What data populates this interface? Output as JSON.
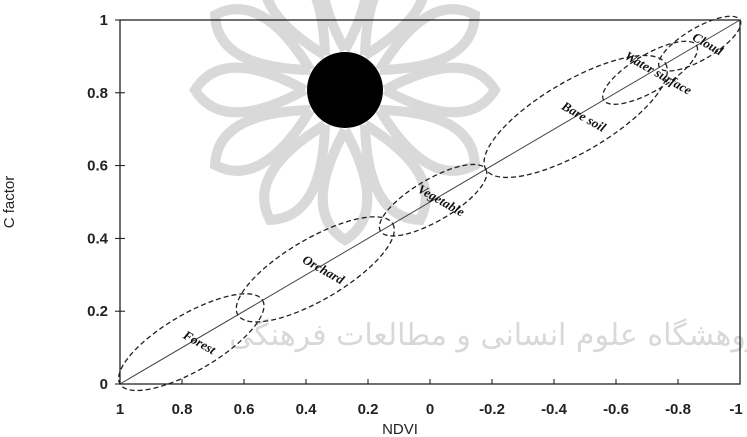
{
  "chart_data": {
    "type": "scatter",
    "title": "",
    "xlabel": "NDVI",
    "ylabel": "C factor",
    "xlim": [
      1,
      -1
    ],
    "ylim": [
      0,
      1
    ],
    "x_ticks": [
      {
        "value": 1,
        "label": "1"
      },
      {
        "value": 0.8,
        "label": "0.8"
      },
      {
        "value": 0.6,
        "label": "0.6"
      },
      {
        "value": 0.4,
        "label": "0.4"
      },
      {
        "value": 0.2,
        "label": "0.2"
      },
      {
        "value": 0,
        "label": "0"
      },
      {
        "value": -0.2,
        "label": "-0.2"
      },
      {
        "value": -0.4,
        "label": "-0.4"
      },
      {
        "value": -0.6,
        "label": "-0.6"
      },
      {
        "value": -0.8,
        "label": "-0.8"
      },
      {
        "value": -1,
        "label": "-1"
      }
    ],
    "y_ticks": [
      {
        "value": 0,
        "label": "0"
      },
      {
        "value": 0.2,
        "label": "0.2"
      },
      {
        "value": 0.4,
        "label": "0.4"
      },
      {
        "value": 0.6,
        "label": "0.6"
      },
      {
        "value": 0.8,
        "label": "0.8"
      },
      {
        "value": 1,
        "label": "1"
      }
    ],
    "fit_line": {
      "x": [
        1,
        -1
      ],
      "y": [
        0,
        1
      ]
    },
    "classes": [
      {
        "label": "Forest",
        "ndvi_range": [
          1.0,
          0.54
        ],
        "c_range": [
          0.0,
          0.23
        ]
      },
      {
        "label": "Orchard",
        "ndvi_range": [
          0.62,
          0.12
        ],
        "c_range": [
          0.19,
          0.44
        ]
      },
      {
        "label": "Vegetable",
        "ndvi_range": [
          0.16,
          -0.18
        ],
        "c_range": [
          0.42,
          0.59
        ]
      },
      {
        "label": "Bare soil",
        "ndvi_range": [
          -0.18,
          -0.76
        ],
        "c_range": [
          0.59,
          0.88
        ]
      },
      {
        "label": "Water surface",
        "ndvi_range": [
          -0.56,
          -0.86
        ],
        "c_range": [
          0.78,
          0.93
        ]
      },
      {
        "label": "Cloud",
        "ndvi_range": [
          -0.74,
          -1.0
        ],
        "c_range": [
          0.87,
          1.0
        ]
      }
    ],
    "grid": false,
    "legend": "none"
  },
  "watermark": {
    "text": "پژوهشگاه علوم انسانی و مطالعات فرهنگی"
  }
}
